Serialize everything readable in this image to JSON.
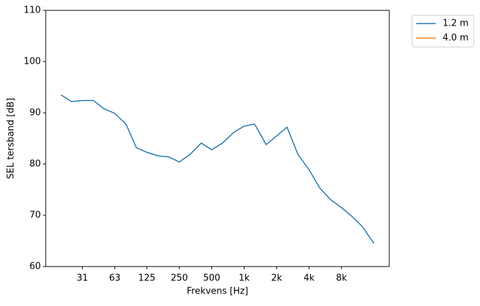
{
  "chart_data": {
    "type": "line",
    "x_label": "Frekvens [Hz]",
    "y_label": "SEL tersband [dB]",
    "x": [
      20,
      25,
      31.5,
      40,
      50,
      63,
      80,
      100,
      125,
      160,
      200,
      250,
      315,
      400,
      500,
      630,
      800,
      1000,
      1250,
      1600,
      2000,
      2500,
      3150,
      4000,
      5000,
      6300,
      8000,
      10000,
      12500,
      16000
    ],
    "series": [
      {
        "name": "1.2 m",
        "color": "#1f77b4",
        "values": [
          93.5,
          92.2,
          92.4,
          92.4,
          90.8,
          89.9,
          87.8,
          83.2,
          82.3,
          81.6,
          81.4,
          80.4,
          81.9,
          84.1,
          82.8,
          84.1,
          86.2,
          87.4,
          87.8,
          83.8,
          85.5,
          87.2,
          81.9,
          78.9,
          75.4,
          73.1,
          71.5,
          69.8,
          67.8,
          64.5
        ]
      },
      {
        "name": "4.0 m",
        "color": "#ff7f0e",
        "values": [
          null,
          null,
          null,
          null,
          null,
          null,
          null,
          null,
          null,
          null,
          null,
          null,
          null,
          null,
          null,
          null,
          null,
          null,
          null,
          null,
          null,
          null,
          null,
          null,
          null,
          null,
          null,
          null,
          null,
          null
        ]
      }
    ],
    "x_log": true,
    "xlim": [
      14.4,
      22200
    ],
    "xticks": [
      {
        "value": 31.5,
        "label": "31"
      },
      63,
      125,
      250,
      500,
      {
        "value": 1000,
        "label": "1k"
      },
      {
        "value": 2000,
        "label": "2k"
      },
      {
        "value": 4000,
        "label": "4k"
      },
      {
        "value": 8000,
        "label": "8k"
      }
    ],
    "ylim": [
      60,
      110
    ],
    "yticks": [
      60,
      70,
      80,
      90,
      100,
      110
    ],
    "legend": "outside-upper-right"
  }
}
